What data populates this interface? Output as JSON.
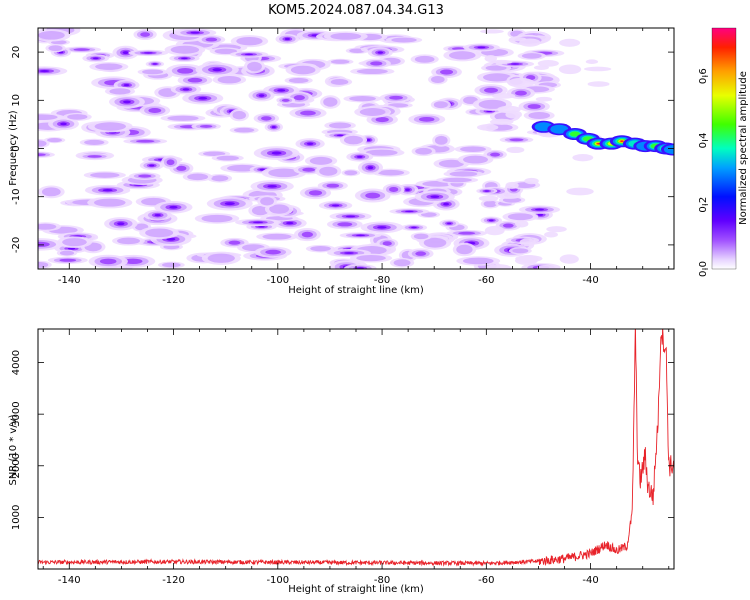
{
  "title": "KOM5.2024.087.04.34.G13",
  "chart_data": [
    {
      "type": "heatmap",
      "xlabel": "Height of straight line (km)",
      "ylabel": "Frequency (Hz)",
      "xlim": [
        -146,
        -24
      ],
      "ylim": [
        -25,
        25
      ],
      "x_ticks": [
        -140,
        -120,
        -100,
        -80,
        -60,
        -40
      ],
      "y_ticks": [
        -20,
        -10,
        0,
        10,
        20
      ],
      "colorbar": {
        "label": "Normalized spectral amplitude",
        "range": [
          0,
          0.75
        ],
        "ticks": [
          "0.0",
          "0.2",
          "0.4",
          "0.6"
        ],
        "colormap": "gist_rainbow (white at zero)"
      },
      "description_of_content": "Scattered weak (0.05-0.2) noise blobs between -146 and -50 km at all frequencies; strong coherent ridge near 0-5 Hz from -50 km to -24 km reaching ~0.75 around -38 to -32 km and -28 to -24 km"
    },
    {
      "type": "line",
      "xlabel": "Height of straight line (km)",
      "ylabel": "SNR (10 * v/v)",
      "xlim": [
        -146,
        -24
      ],
      "ylim": [
        0,
        4650
      ],
      "x_ticks": [
        -140,
        -120,
        -100,
        -80,
        -60,
        -40
      ],
      "y_ticks": [
        1000,
        2000,
        3000,
        4000
      ],
      "line_color": "#e8232a",
      "series_key_points": [
        {
          "x": -146,
          "y": 130
        },
        {
          "x": -120,
          "y": 140
        },
        {
          "x": -100,
          "y": 130
        },
        {
          "x": -80,
          "y": 120
        },
        {
          "x": -60,
          "y": 110
        },
        {
          "x": -50,
          "y": 150
        },
        {
          "x": -45,
          "y": 200
        },
        {
          "x": -40,
          "y": 300
        },
        {
          "x": -37,
          "y": 480
        },
        {
          "x": -35,
          "y": 350
        },
        {
          "x": -33,
          "y": 450
        },
        {
          "x": -32,
          "y": 1100
        },
        {
          "x": -31.4,
          "y": 4650
        },
        {
          "x": -31,
          "y": 2200
        },
        {
          "x": -30.5,
          "y": 1700
        },
        {
          "x": -29.5,
          "y": 2200
        },
        {
          "x": -29,
          "y": 1600
        },
        {
          "x": -28,
          "y": 1400
        },
        {
          "x": -27,
          "y": 3000
        },
        {
          "x": -26.5,
          "y": 4650
        },
        {
          "x": -25.5,
          "y": 4200
        },
        {
          "x": -25,
          "y": 2000
        },
        {
          "x": -24,
          "y": 2000
        }
      ]
    }
  ]
}
